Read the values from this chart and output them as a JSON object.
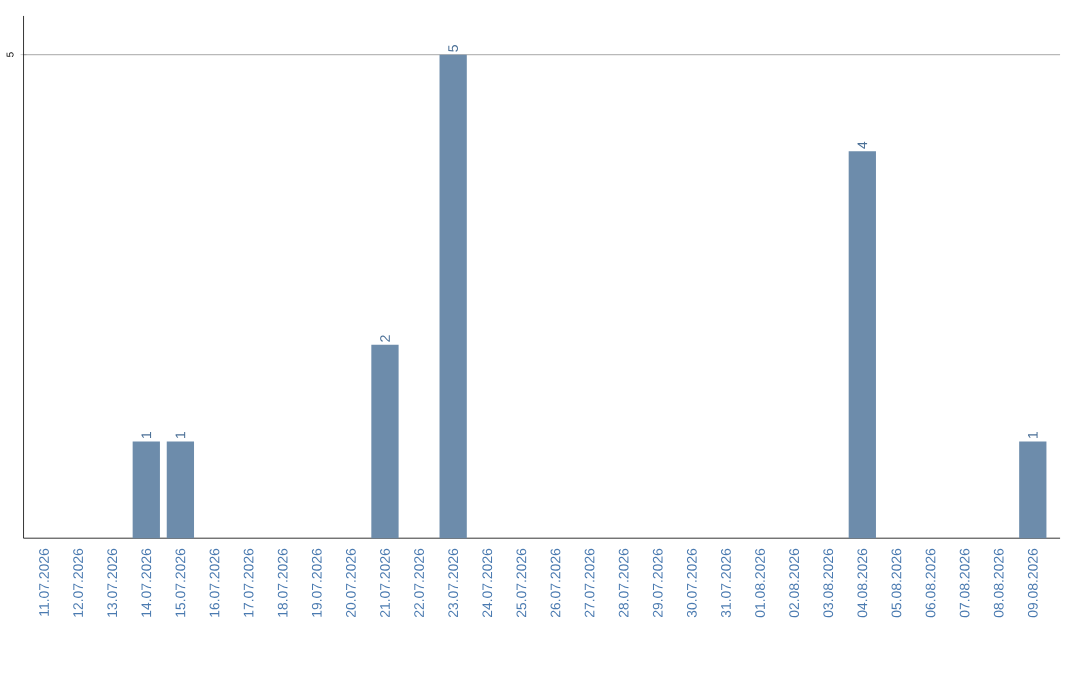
{
  "chart_data": {
    "type": "bar",
    "categories": [
      "11.07.2026",
      "12.07.2026",
      "13.07.2026",
      "14.07.2026",
      "15.07.2026",
      "16.07.2026",
      "17.07.2026",
      "18.07.2026",
      "19.07.2026",
      "20.07.2026",
      "21.07.2026",
      "22.07.2026",
      "23.07.2026",
      "24.07.2026",
      "25.07.2026",
      "26.07.2026",
      "27.07.2026",
      "28.07.2026",
      "29.07.2026",
      "30.07.2026",
      "31.07.2026",
      "01.08.2026",
      "02.08.2026",
      "03.08.2026",
      "04.08.2026",
      "05.08.2026",
      "06.08.2026",
      "07.08.2026",
      "08.08.2026",
      "09.08.2026"
    ],
    "values": [
      0,
      0,
      0,
      1,
      1,
      0,
      0,
      0,
      0,
      0,
      2,
      0,
      5,
      0,
      0,
      0,
      0,
      0,
      0,
      0,
      0,
      0,
      0,
      0,
      4,
      0,
      0,
      0,
      0,
      1
    ],
    "value_labels": [
      null,
      null,
      null,
      "1",
      "1",
      null,
      null,
      null,
      null,
      null,
      "2",
      null,
      "5",
      null,
      null,
      null,
      null,
      null,
      null,
      null,
      null,
      null,
      null,
      null,
      "4",
      null,
      null,
      null,
      null,
      "1"
    ],
    "color": "#6d8cab",
    "ylim": [
      0,
      5.4
    ],
    "yticks": [
      5
    ],
    "grid": "y"
  }
}
